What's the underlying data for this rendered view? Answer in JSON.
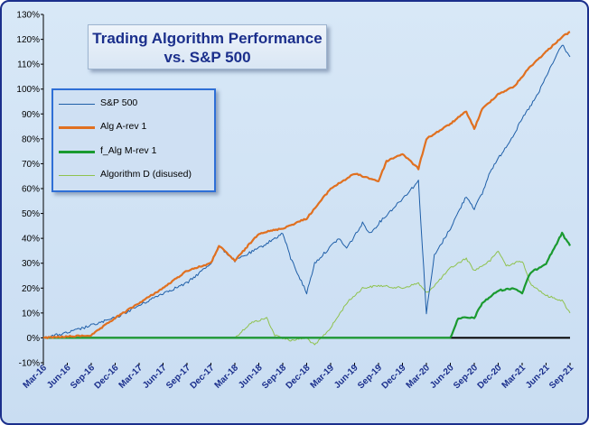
{
  "chart_data": {
    "type": "line",
    "title": "Trading Algorithm Performance\nvs. S&P 500",
    "title_lines": [
      "Trading Algorithm Performance",
      "vs. S&P 500"
    ],
    "y_tick_labels": [
      "-10%",
      "0%",
      "10%",
      "20%",
      "30%",
      "40%",
      "50%",
      "60%",
      "70%",
      "80%",
      "90%",
      "100%",
      "110%",
      "120%",
      "130%"
    ],
    "ylim": [
      -10,
      130
    ],
    "x_tick_labels": [
      "Mar-16",
      "Jun-16",
      "Sep-16",
      "Dec-16",
      "Mar-17",
      "Jun-17",
      "Sep-17",
      "Dec-17",
      "Mar-18",
      "Jun-18",
      "Sep-18",
      "Dec-18",
      "Mar-19",
      "Jun-19",
      "Sep-19",
      "Dec-19",
      "Mar-20",
      "Jun-20",
      "Sep-20",
      "Dec-20",
      "Mar-21",
      "Jun-21",
      "Sep-21"
    ],
    "xlim": [
      "Mar-16",
      "Sep-21"
    ],
    "legend_position": "upper-left",
    "grid": false,
    "series": [
      {
        "name": "S&P 500",
        "color": "#1f5fa8",
        "points": [
          [
            "Mar-16",
            0
          ],
          [
            "Jun-16",
            2
          ],
          [
            "Sep-16",
            5
          ],
          [
            "Dec-16",
            8
          ],
          [
            "Mar-17",
            13
          ],
          [
            "Jun-17",
            18
          ],
          [
            "Sep-17",
            22
          ],
          [
            "Dec-17",
            30
          ],
          [
            "Jan-18",
            37
          ],
          [
            "Mar-18",
            31
          ],
          [
            "Jun-18",
            36
          ],
          [
            "Sep-18",
            42
          ],
          [
            "Oct-18",
            32
          ],
          [
            "Dec-18",
            18
          ],
          [
            "Jan-19",
            30
          ],
          [
            "Apr-19",
            40
          ],
          [
            "May-19",
            36
          ],
          [
            "Jul-19",
            46
          ],
          [
            "Aug-19",
            42
          ],
          [
            "Sep-19",
            46
          ],
          [
            "Dec-19",
            56
          ],
          [
            "Feb-20",
            63
          ],
          [
            "Mar-20",
            10
          ],
          [
            "Apr-20",
            33
          ],
          [
            "Jun-20",
            44
          ],
          [
            "Aug-20",
            57
          ],
          [
            "Sep-20",
            52
          ],
          [
            "Oct-20",
            58
          ],
          [
            "Nov-20",
            67
          ],
          [
            "Dec-20",
            72
          ],
          [
            "Feb-21",
            82
          ],
          [
            "Mar-21",
            88
          ],
          [
            "May-21",
            98
          ],
          [
            "Jun-21",
            105
          ],
          [
            "Aug-21",
            118
          ],
          [
            "Sep-21",
            113
          ]
        ]
      },
      {
        "name": "Alg A-rev 1",
        "color": "#e07020",
        "points": [
          [
            "Mar-16",
            0
          ],
          [
            "Jun-16",
            0.5
          ],
          [
            "Sep-16",
            1
          ],
          [
            "Dec-16",
            8
          ],
          [
            "Mar-17",
            14
          ],
          [
            "Jun-17",
            20
          ],
          [
            "Sep-17",
            27
          ],
          [
            "Dec-17",
            30
          ],
          [
            "Jan-18",
            37
          ],
          [
            "Mar-18",
            31
          ],
          [
            "Jun-18",
            42
          ],
          [
            "Sep-18",
            44
          ],
          [
            "Dec-18",
            48
          ],
          [
            "Mar-19",
            60
          ],
          [
            "Jun-19",
            66
          ],
          [
            "Sep-19",
            63
          ],
          [
            "Oct-19",
            71
          ],
          [
            "Dec-19",
            74
          ],
          [
            "Feb-20",
            68
          ],
          [
            "Mar-20",
            80
          ],
          [
            "Jun-20",
            86
          ],
          [
            "Aug-20",
            91
          ],
          [
            "Sep-20",
            84
          ],
          [
            "Oct-20",
            92
          ],
          [
            "Dec-20",
            98
          ],
          [
            "Feb-21",
            101
          ],
          [
            "Apr-21",
            109
          ],
          [
            "Jun-21",
            115
          ],
          [
            "Aug-21",
            121
          ],
          [
            "Sep-21",
            123
          ]
        ]
      },
      {
        "name": "f_Alg M-rev 1",
        "color": "#1a9a30",
        "points": [
          [
            "Mar-16",
            0
          ],
          [
            "Jun-20",
            0
          ],
          [
            "Jul-20",
            8
          ],
          [
            "Sep-20",
            8
          ],
          [
            "Oct-20",
            14
          ],
          [
            "Dec-20",
            19
          ],
          [
            "Feb-21",
            20
          ],
          [
            "Mar-21",
            18
          ],
          [
            "Apr-21",
            26
          ],
          [
            "Jun-21",
            30
          ],
          [
            "Aug-21",
            42
          ],
          [
            "Sep-21",
            37
          ]
        ]
      },
      {
        "name": "Algorithm D (disused)",
        "color": "#8fc24f",
        "points": [
          [
            "Mar-16",
            0
          ],
          [
            "Mar-18",
            0
          ],
          [
            "May-18",
            6
          ],
          [
            "Jul-18",
            8
          ],
          [
            "Aug-18",
            1
          ],
          [
            "Oct-18",
            -1
          ],
          [
            "Dec-18",
            0
          ],
          [
            "Jan-19",
            -3
          ],
          [
            "Mar-19",
            4
          ],
          [
            "May-19",
            14
          ],
          [
            "Jul-19",
            20
          ],
          [
            "Sep-19",
            21
          ],
          [
            "Dec-19",
            20
          ],
          [
            "Feb-20",
            22
          ],
          [
            "Mar-20",
            18
          ],
          [
            "Apr-20",
            21
          ],
          [
            "Jun-20",
            28
          ],
          [
            "Aug-20",
            32
          ],
          [
            "Sep-20",
            27
          ],
          [
            "Nov-20",
            31
          ],
          [
            "Dec-20",
            35
          ],
          [
            "Jan-21",
            29
          ],
          [
            "Mar-21",
            31
          ],
          [
            "Apr-21",
            22
          ],
          [
            "Jun-21",
            17
          ],
          [
            "Aug-21",
            15
          ],
          [
            "Sep-21",
            10
          ]
        ]
      }
    ]
  }
}
